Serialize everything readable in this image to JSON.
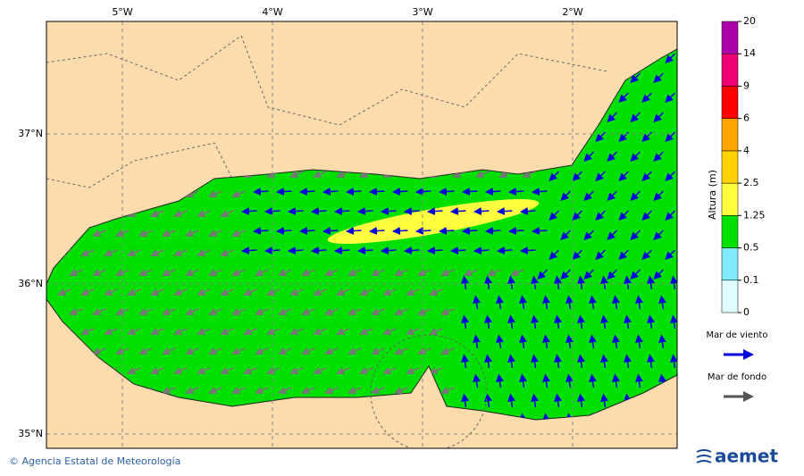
{
  "map": {
    "lon_labels": [
      "5°W",
      "4°W",
      "3°W",
      "2°W"
    ],
    "lat_labels": [
      "37°N",
      "36°N",
      "35°N"
    ]
  },
  "legend": {
    "title": "Altura (m)",
    "levels": [
      "0",
      "0.1",
      "0.5",
      "1.25",
      "2.5",
      "4",
      "6",
      "9",
      "14",
      "20"
    ],
    "colors": [
      "#dffcff",
      "#80eafa",
      "#00e000",
      "#ffff40",
      "#ffd200",
      "#ffa500",
      "#ff0000",
      "#ee0077",
      "#aa00aa"
    ]
  },
  "arrow_legend": [
    {
      "label": "Mar de viento",
      "color": "#0000dd"
    },
    {
      "label": "Mar de fondo",
      "color": "#555555"
    }
  ],
  "credit": "© Agencia Estatal de Meteorología",
  "logo": "aemet"
}
